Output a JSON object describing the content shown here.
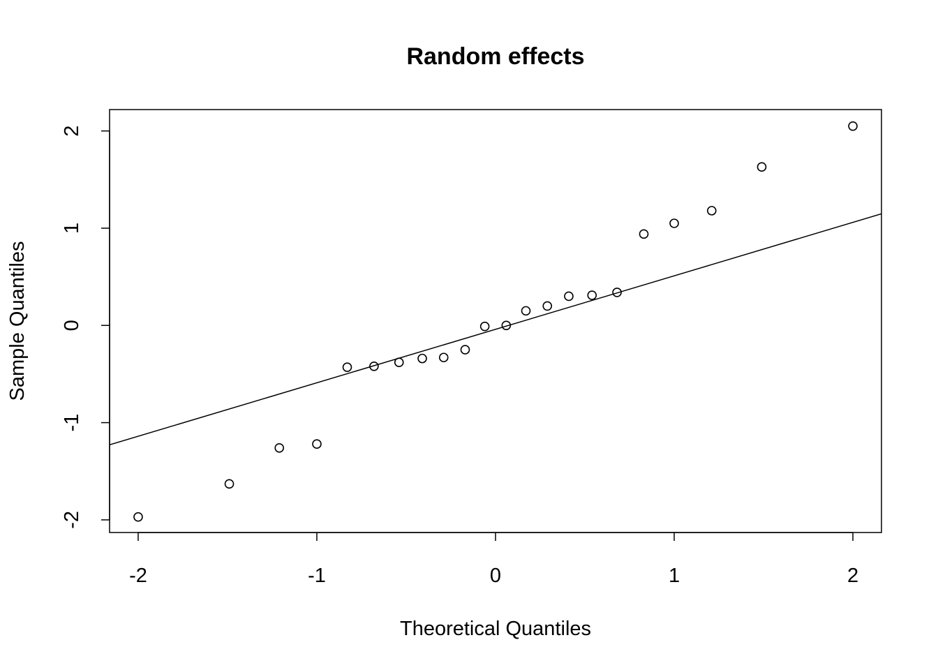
{
  "chart_data": {
    "type": "scatter",
    "title": "Random effects",
    "xlabel": "Theoretical Quantiles",
    "ylabel": "Sample Quantiles",
    "xlim": [
      -2.16,
      2.16
    ],
    "ylim": [
      -2.13,
      2.22
    ],
    "x_ticks": [
      -2,
      -1,
      0,
      1,
      2
    ],
    "x_tick_labels": [
      "-2",
      "-1",
      "0",
      "1",
      "2"
    ],
    "y_ticks": [
      -2,
      -1,
      0,
      1,
      2
    ],
    "y_tick_labels": [
      "-2",
      "-1",
      "0",
      "1",
      "2"
    ],
    "grid": false,
    "legend": "none",
    "points": {
      "x": [
        -2.0,
        -1.49,
        -1.21,
        -1.0,
        -0.83,
        -0.68,
        -0.54,
        -0.41,
        -0.29,
        -0.17,
        -0.06,
        0.06,
        0.17,
        0.29,
        0.41,
        0.54,
        0.68,
        0.83,
        1.0,
        1.21,
        1.49,
        2.0
      ],
      "y": [
        -1.97,
        -1.63,
        -1.26,
        -1.22,
        -0.43,
        -0.42,
        -0.38,
        -0.34,
        -0.33,
        -0.25,
        -0.01,
        0.0,
        0.15,
        0.2,
        0.3,
        0.31,
        0.34,
        0.94,
        1.05,
        1.18,
        1.63,
        2.05
      ]
    },
    "reference_line": {
      "intercept": -0.04,
      "slope": 0.55
    },
    "colors": {
      "points": "#000000",
      "line": "#000000",
      "frame": "#000000"
    }
  }
}
